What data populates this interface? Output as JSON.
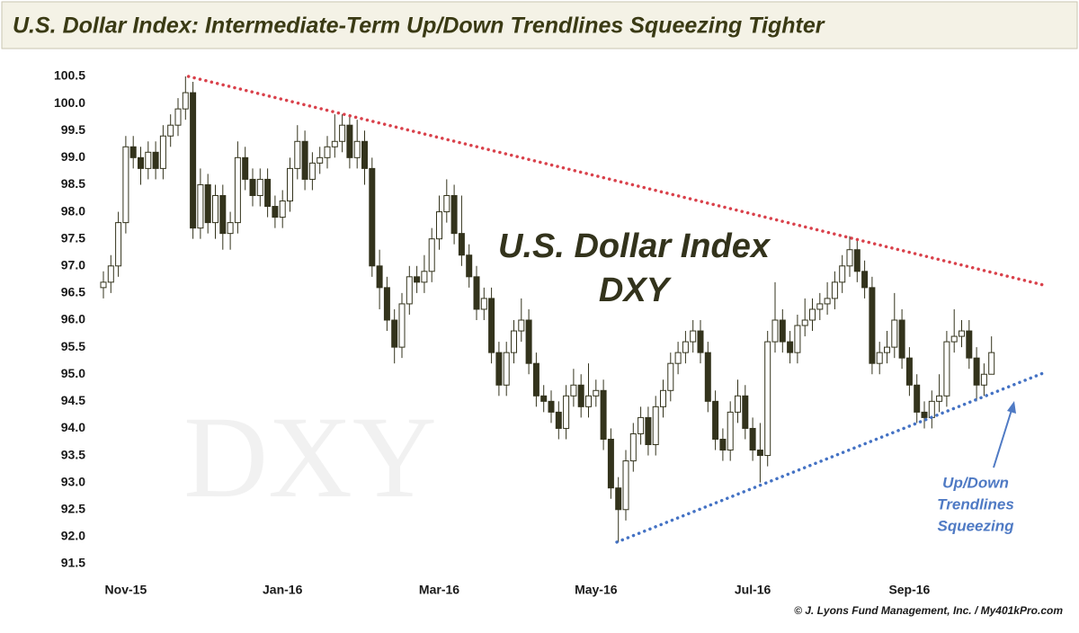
{
  "chart_data": {
    "type": "candlestick",
    "title": "U.S. Dollar Index: Intermediate-Term Up/Down Trendlines Squeezing Tighter",
    "categories": [
      null,
      null,
      null,
      "Nov-15",
      null,
      null,
      null,
      null,
      null,
      null,
      null,
      null,
      null,
      null,
      null,
      null,
      null,
      null,
      null,
      null,
      null,
      null,
      null,
      null,
      "Jan-16",
      null,
      null,
      null,
      null,
      null,
      null,
      null,
      null,
      null,
      null,
      null,
      null,
      null,
      null,
      null,
      null,
      null,
      null,
      null,
      null,
      "Mar-16",
      null,
      null,
      null,
      null,
      null,
      null,
      null,
      null,
      null,
      null,
      null,
      null,
      null,
      null,
      null,
      null,
      null,
      null,
      null,
      null,
      "May-16",
      null,
      null,
      null,
      null,
      null,
      null,
      null,
      null,
      null,
      null,
      null,
      null,
      null,
      null,
      null,
      null,
      null,
      null,
      null,
      null,
      "Jul-16",
      null,
      null,
      null,
      null,
      null,
      null,
      null,
      null,
      null,
      null,
      null,
      null,
      null,
      null,
      null,
      null,
      null,
      null,
      null,
      null,
      "Sep-16",
      null,
      null,
      null,
      null,
      null,
      null,
      null,
      null,
      null,
      null,
      null
    ],
    "open": [
      96.6,
      96.7,
      97.0,
      97.8,
      99.2,
      99.0,
      98.8,
      99.1,
      98.8,
      99.4,
      99.6,
      99.9,
      100.2,
      97.7,
      98.5,
      97.8,
      98.3,
      97.6,
      97.8,
      99.0,
      98.6,
      98.3,
      98.6,
      98.1,
      97.9,
      98.2,
      98.8,
      99.3,
      98.6,
      98.9,
      99.0,
      99.2,
      99.3,
      99.6,
      99.0,
      99.3,
      98.8,
      97.0,
      96.6,
      96.0,
      95.5,
      96.3,
      96.8,
      96.7,
      96.9,
      97.5,
      98.0,
      98.3,
      97.6,
      97.2,
      96.8,
      96.2,
      96.4,
      95.4,
      94.8,
      95.4,
      95.8,
      96.0,
      95.2,
      94.6,
      94.5,
      94.3,
      94.0,
      94.6,
      94.8,
      94.4,
      94.6,
      94.7,
      93.8,
      92.9,
      92.5,
      93.4,
      93.9,
      94.2,
      93.7,
      94.4,
      94.7,
      95.2,
      95.4,
      95.6,
      95.8,
      95.4,
      94.5,
      93.8,
      93.6,
      94.3,
      94.6,
      94.0,
      93.6,
      93.5,
      95.6,
      96.0,
      95.6,
      95.4,
      95.9,
      96.0,
      96.2,
      96.3,
      96.4,
      96.7,
      97.0,
      97.3,
      96.9,
      96.6,
      95.2,
      95.4,
      95.5,
      96.0,
      95.3,
      94.8,
      94.3,
      94.2,
      94.5,
      94.6,
      95.6,
      95.7,
      95.8,
      95.3,
      94.8,
      95.0
    ],
    "high": [
      96.9,
      97.2,
      98.0,
      99.4,
      99.4,
      99.2,
      99.3,
      99.3,
      99.6,
      99.8,
      100.1,
      100.5,
      100.4,
      98.8,
      98.7,
      98.5,
      98.5,
      98.0,
      99.3,
      99.2,
      98.8,
      98.8,
      98.8,
      98.3,
      98.4,
      99.0,
      99.6,
      99.5,
      99.1,
      99.2,
      99.4,
      99.8,
      99.8,
      99.8,
      99.7,
      99.5,
      99.0,
      97.3,
      96.8,
      96.2,
      96.5,
      97.0,
      97.0,
      97.2,
      97.7,
      98.3,
      98.6,
      98.5,
      98.3,
      97.4,
      97.0,
      96.6,
      96.6,
      95.6,
      95.6,
      96.0,
      96.4,
      96.2,
      95.4,
      94.8,
      94.7,
      94.5,
      94.8,
      95.1,
      95.0,
      95.2,
      94.9,
      94.9,
      94.0,
      93.1,
      93.6,
      94.1,
      94.4,
      94.4,
      94.6,
      94.9,
      95.4,
      95.6,
      95.8,
      96.0,
      96.0,
      95.6,
      94.7,
      94.0,
      94.5,
      94.9,
      94.8,
      94.2,
      94.1,
      95.8,
      96.7,
      96.2,
      95.8,
      96.1,
      96.4,
      96.4,
      96.5,
      96.7,
      96.9,
      97.2,
      97.55,
      97.5,
      97.1,
      96.8,
      95.6,
      95.8,
      96.5,
      96.2,
      95.5,
      95.0,
      94.5,
      94.7,
      95.0,
      95.8,
      96.2,
      96.0,
      96.0,
      95.5,
      95.2,
      95.7
    ],
    "low": [
      96.4,
      96.5,
      96.8,
      97.6,
      98.8,
      98.5,
      98.6,
      98.6,
      98.6,
      99.2,
      99.4,
      99.7,
      97.5,
      97.5,
      97.6,
      97.5,
      97.3,
      97.3,
      97.6,
      98.4,
      98.1,
      98.1,
      97.9,
      97.7,
      97.7,
      98.0,
      98.6,
      98.4,
      98.4,
      98.7,
      98.8,
      99.0,
      99.1,
      98.8,
      98.8,
      98.5,
      96.8,
      96.2,
      95.8,
      95.2,
      95.3,
      96.1,
      96.5,
      96.5,
      96.7,
      97.3,
      97.8,
      97.4,
      97.0,
      96.6,
      96.0,
      96.0,
      95.2,
      94.6,
      94.6,
      95.2,
      95.6,
      95.0,
      94.4,
      94.3,
      94.1,
      93.8,
      93.8,
      94.4,
      94.2,
      94.2,
      94.4,
      93.6,
      92.7,
      91.9,
      92.3,
      93.2,
      93.7,
      93.5,
      93.5,
      94.2,
      94.5,
      95.0,
      95.2,
      95.4,
      95.2,
      94.3,
      93.6,
      93.4,
      93.4,
      94.1,
      93.8,
      93.4,
      93.0,
      93.3,
      95.4,
      95.4,
      95.2,
      95.2,
      95.7,
      95.8,
      96.0,
      96.1,
      96.2,
      96.5,
      96.8,
      96.7,
      96.4,
      95.0,
      95.0,
      95.2,
      95.3,
      95.1,
      94.6,
      94.1,
      94.0,
      94.0,
      94.3,
      94.4,
      95.4,
      95.5,
      95.1,
      94.5,
      94.6,
      95.0
    ],
    "close": [
      96.7,
      97.0,
      97.8,
      99.2,
      99.0,
      98.8,
      99.1,
      98.8,
      99.4,
      99.6,
      99.9,
      100.2,
      97.7,
      98.5,
      97.8,
      98.3,
      97.6,
      97.8,
      99.0,
      98.6,
      98.3,
      98.6,
      98.1,
      97.9,
      98.2,
      98.8,
      99.3,
      98.6,
      98.9,
      99.0,
      99.2,
      99.3,
      99.6,
      99.0,
      99.3,
      98.8,
      97.0,
      96.6,
      96.0,
      95.5,
      96.3,
      96.8,
      96.7,
      96.9,
      97.5,
      98.0,
      98.3,
      97.6,
      97.2,
      96.8,
      96.2,
      96.4,
      95.4,
      94.8,
      95.4,
      95.8,
      96.0,
      95.2,
      94.6,
      94.5,
      94.3,
      94.0,
      94.6,
      94.8,
      94.4,
      94.6,
      94.7,
      93.8,
      92.9,
      92.5,
      93.4,
      93.9,
      94.2,
      93.7,
      94.4,
      94.7,
      95.2,
      95.4,
      95.6,
      95.8,
      95.4,
      94.5,
      93.8,
      93.6,
      94.3,
      94.6,
      94.0,
      93.6,
      93.5,
      95.6,
      96.0,
      95.6,
      95.4,
      95.9,
      96.0,
      96.2,
      96.3,
      96.4,
      96.7,
      97.0,
      97.3,
      96.9,
      96.6,
      95.2,
      95.4,
      95.5,
      96.0,
      95.3,
      94.8,
      94.3,
      94.2,
      94.5,
      94.6,
      95.6,
      95.7,
      95.8,
      95.3,
      94.8,
      95.0,
      95.4
    ],
    "up_color": "#ffffff",
    "down_color": "#33331c",
    "wick_color": "#33331c",
    "ylim": [
      91.5,
      100.5
    ],
    "yticks": [
      91.5,
      {
        "value": 92,
        "label": "92.0"
      },
      92.5,
      {
        "value": 93,
        "label": "93.0"
      },
      93.5,
      {
        "value": 94,
        "label": "94.0"
      },
      94.5,
      {
        "value": 95,
        "label": "95.0"
      },
      95.5,
      {
        "value": 96,
        "label": "96.0"
      },
      96.5,
      {
        "value": 97,
        "label": "97.0"
      },
      97.5,
      {
        "value": 98,
        "label": "98.0"
      },
      98.5,
      {
        "value": 99,
        "label": "99.0"
      },
      99.5,
      {
        "value": 100,
        "label": "100.0"
      },
      100.5
    ],
    "trendlines": [
      {
        "x": [
          11.4,
          126.5
        ],
        "y": [
          100.5,
          96.63
        ],
        "color": "#d9414b"
      },
      {
        "x": [
          68.8,
          125.9
        ],
        "y": [
          91.9,
          95.02
        ],
        "color": "#4472c4"
      }
    ],
    "annotation_title": [
      "U.S. Dollar Index",
      "DXY"
    ],
    "watermark": "DXY",
    "note": [
      "Up/Down",
      "Trendlines",
      "Squeezing"
    ],
    "credit": "© J. Lyons Fund Management, Inc. / My401kPro.com"
  }
}
